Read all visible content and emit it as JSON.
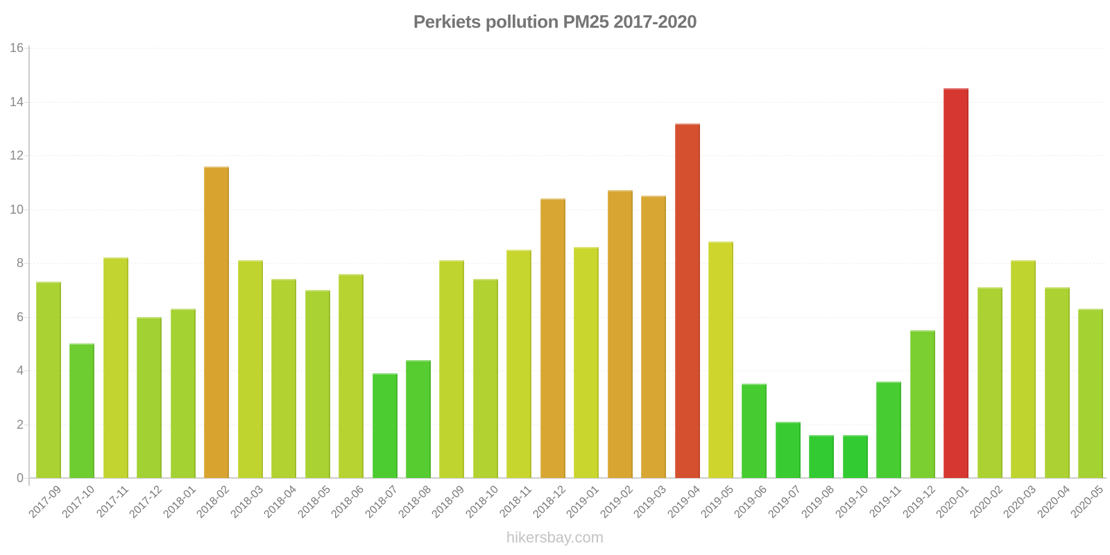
{
  "title": "Perkiets pollution PM25 2017-2020",
  "footer": "hikersbay.com",
  "axis_colors": {
    "axis_line": "#cccccc",
    "y_tick_label": "#8a8a8a",
    "x_tick_label": "#777777",
    "title": "#757575",
    "footer": "#c3c3c3"
  },
  "chart_data": {
    "type": "bar",
    "title": "Perkiets pollution PM25 2017-2020",
    "xlabel": "",
    "ylabel": "",
    "ylim": [
      0,
      16
    ],
    "yticks": [
      0,
      2,
      4,
      6,
      8,
      10,
      12,
      14,
      16
    ],
    "grid": "faint dashed horizontal lines at y ticks",
    "legend_position": "none",
    "categories": [
      "2017-09",
      "2017-10",
      "2017-11",
      "2017-12",
      "2018-01",
      "2018-02",
      "2018-03",
      "2018-04",
      "2018-05",
      "2018-06",
      "2018-07",
      "2018-08",
      "2018-09",
      "2018-10",
      "2018-11",
      "2018-12",
      "2019-01",
      "2019-02",
      "2019-03",
      "2019-04",
      "2019-05",
      "2019-06",
      "2019-07",
      "2019-08",
      "2019-10",
      "2019-11",
      "2019-12",
      "2020-01",
      "2020-02",
      "2020-03",
      "2020-04",
      "2020-05"
    ],
    "values": [
      7.3,
      5.0,
      8.2,
      6.0,
      6.3,
      11.6,
      8.1,
      7.4,
      7.0,
      7.6,
      3.9,
      4.4,
      8.1,
      7.4,
      8.5,
      10.4,
      8.6,
      10.7,
      10.5,
      13.2,
      8.8,
      3.5,
      2.1,
      1.6,
      1.6,
      3.6,
      5.5,
      14.5,
      7.1,
      8.1,
      7.1,
      6.3
    ],
    "colors": [
      "#aad233",
      "#6ecd30",
      "#c2d42f",
      "#a2d133",
      "#a5d233",
      "#d8a42f",
      "#c0d42f",
      "#b2d231",
      "#a9d232",
      "#b6d331",
      "#4ccc31",
      "#56cc31",
      "#c0d42f",
      "#b2d231",
      "#c7d52f",
      "#d8a733",
      "#c9d62e",
      "#d8a532",
      "#d8a633",
      "#d5502f",
      "#ced62e",
      "#46cc31",
      "#39cb32",
      "#33cb32",
      "#33cb32",
      "#47cc31",
      "#7bcf30",
      "#d63730",
      "#abd232",
      "#c0d42f",
      "#abd232",
      "#a5d233"
    ]
  }
}
